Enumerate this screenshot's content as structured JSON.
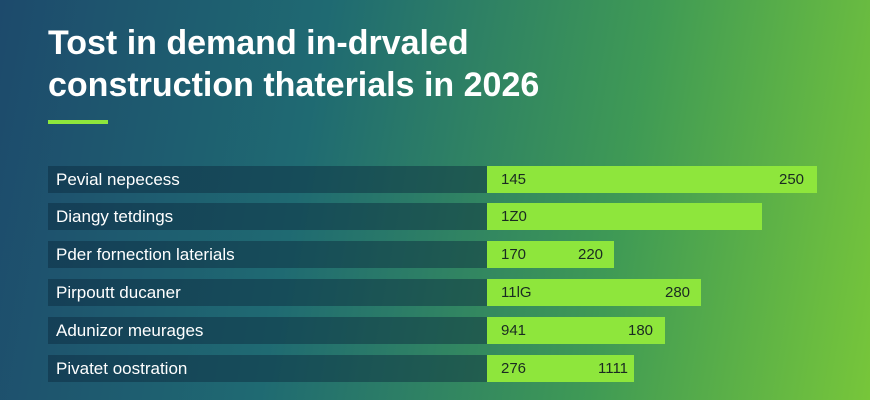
{
  "header": {
    "title_lines": [
      "Tost in demand in-drvaled",
      "construction thaterials in 2026"
    ]
  },
  "rows": [
    {
      "label": "Pevial nepecess",
      "first": "145",
      "second": "250"
    },
    {
      "label": "Diangy tetdings",
      "first": "1Z0"
    },
    {
      "label": "Pder fornection laterials",
      "first": "170",
      "second": "220"
    },
    {
      "label": "Pirpoutt ducaner",
      "first": "11lG",
      "second": "280"
    },
    {
      "label": "Adunizor meurages",
      "first": "941",
      "second": "180"
    },
    {
      "label": "Pivatet oostration",
      "first": "276",
      "second": "1111"
    }
  ]
}
